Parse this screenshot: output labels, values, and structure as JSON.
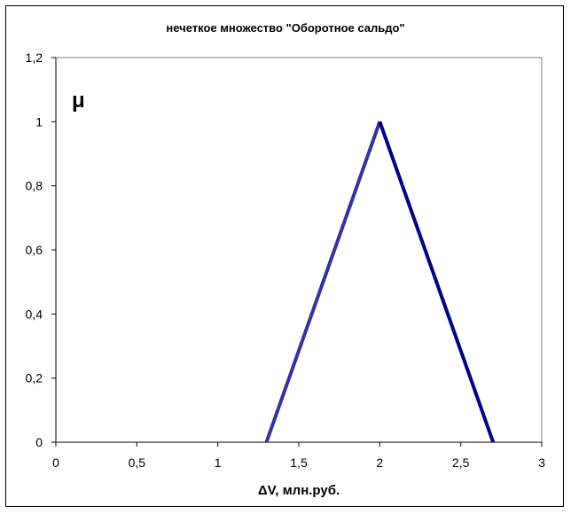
{
  "chart_data": {
    "type": "line",
    "title": "нечеткое множество \"Оборотное сальдо\"",
    "xlabel": "ΔV, млн.руб.",
    "ylabel": "μ",
    "xlim": [
      0,
      3
    ],
    "ylim": [
      0,
      1.2
    ],
    "x_ticks": [
      "0",
      "0,5",
      "1",
      "1,5",
      "2",
      "2,5",
      "3"
    ],
    "y_ticks": [
      "0",
      "0,2",
      "0,4",
      "0,6",
      "0,8",
      "1",
      "1,2"
    ],
    "grid": false,
    "series": [
      {
        "x": [
          1.3,
          2,
          2.7
        ],
        "y": [
          0,
          1,
          0
        ],
        "color": "#000080"
      }
    ],
    "rising_segment_color": "#333399"
  }
}
